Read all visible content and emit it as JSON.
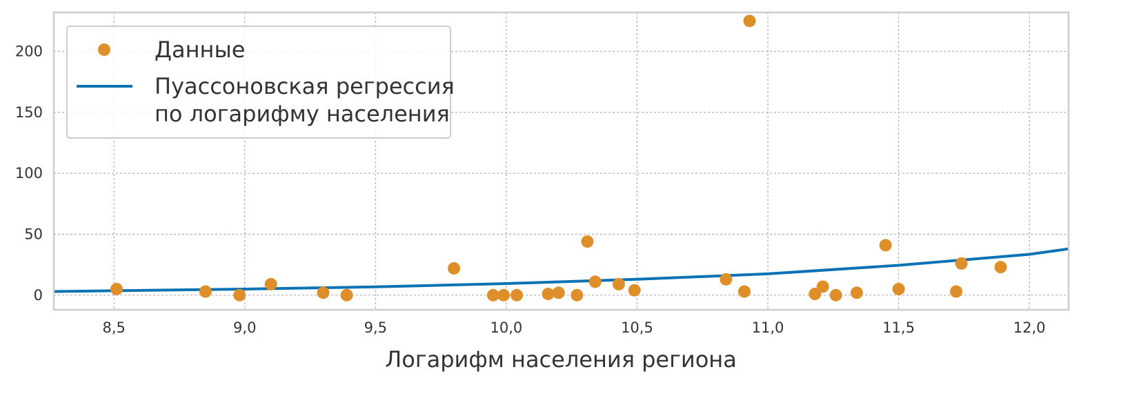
{
  "chart_data": {
    "type": "scatter",
    "xlabel": "Логарифм населения региона",
    "ylabel": "",
    "title": "",
    "xlim": [
      8.27,
      12.15
    ],
    "ylim": [
      -12,
      232
    ],
    "x_ticks": [
      8.5,
      9.0,
      9.5,
      10.0,
      10.5,
      11.0,
      11.5,
      12.0
    ],
    "x_tick_labels": [
      "8,5",
      "9,0",
      "9,5",
      "10,0",
      "10,5",
      "11,0",
      "11,5",
      "12,0"
    ],
    "y_ticks": [
      0,
      50,
      100,
      150,
      200
    ],
    "y_tick_labels": [
      "0",
      "50",
      "100",
      "150",
      "200"
    ],
    "grid": true,
    "legend_position": "top-left",
    "legend": [
      {
        "label": "Данные",
        "kind": "marker"
      },
      {
        "label_lines": [
          "Пуассоновская регрессия",
          "по логарифму населения"
        ],
        "kind": "line"
      }
    ],
    "series": [
      {
        "kind": "scatter",
        "color": "#de8f2a",
        "points": [
          {
            "x": 8.51,
            "y": 5
          },
          {
            "x": 8.85,
            "y": 3
          },
          {
            "x": 8.98,
            "y": 0
          },
          {
            "x": 9.1,
            "y": 9
          },
          {
            "x": 9.3,
            "y": 2
          },
          {
            "x": 9.39,
            "y": 0
          },
          {
            "x": 9.8,
            "y": 22
          },
          {
            "x": 9.95,
            "y": 0
          },
          {
            "x": 9.99,
            "y": 0
          },
          {
            "x": 10.04,
            "y": 0
          },
          {
            "x": 10.16,
            "y": 1
          },
          {
            "x": 10.2,
            "y": 2
          },
          {
            "x": 10.27,
            "y": 0
          },
          {
            "x": 10.31,
            "y": 44
          },
          {
            "x": 10.34,
            "y": 11
          },
          {
            "x": 10.43,
            "y": 9
          },
          {
            "x": 10.49,
            "y": 4
          },
          {
            "x": 10.84,
            "y": 13
          },
          {
            "x": 10.91,
            "y": 3
          },
          {
            "x": 10.93,
            "y": 225
          },
          {
            "x": 11.18,
            "y": 1
          },
          {
            "x": 11.21,
            "y": 7
          },
          {
            "x": 11.26,
            "y": 0
          },
          {
            "x": 11.34,
            "y": 2
          },
          {
            "x": 11.45,
            "y": 41
          },
          {
            "x": 11.5,
            "y": 5
          },
          {
            "x": 11.72,
            "y": 3
          },
          {
            "x": 11.74,
            "y": 26
          },
          {
            "x": 11.89,
            "y": 23
          }
        ]
      },
      {
        "kind": "line",
        "color": "#0b72b4",
        "x": [
          8.27,
          8.5,
          9.0,
          9.5,
          10.0,
          10.5,
          11.0,
          11.5,
          12.0,
          12.15
        ],
        "y": [
          3,
          3.6,
          5,
          6.8,
          9.5,
          13,
          17.5,
          24.5,
          33.5,
          38
        ]
      }
    ]
  }
}
